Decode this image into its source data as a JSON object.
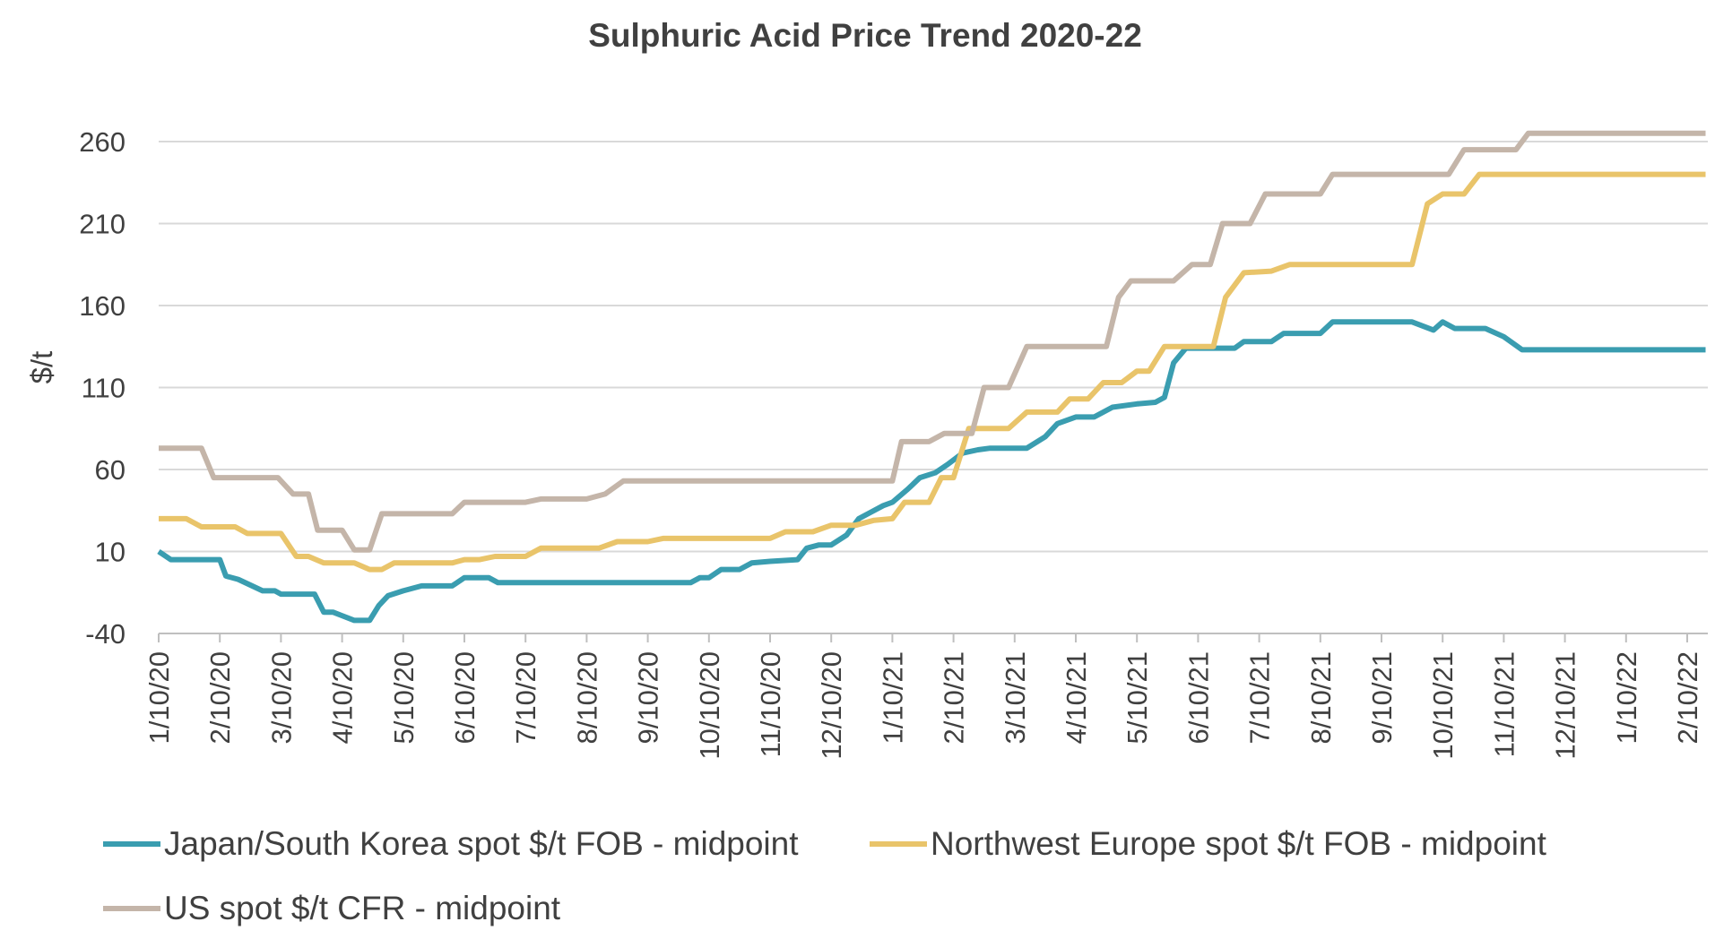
{
  "chart_data": {
    "type": "line",
    "title": "Sulphuric Acid Price Trend 2020-22",
    "ylabel": "$/t",
    "xlabel": "",
    "ylim": [
      -40,
      270
    ],
    "yticks": [
      -40,
      10,
      60,
      110,
      160,
      210,
      260
    ],
    "x_tick_labels": [
      "1/10/20",
      "2/10/20",
      "3/10/20",
      "4/10/20",
      "5/10/20",
      "6/10/20",
      "7/10/20",
      "8/10/20",
      "9/10/20",
      "10/10/20",
      "11/10/20",
      "12/10/20",
      "1/10/21",
      "2/10/21",
      "3/10/21",
      "4/10/21",
      "5/10/21",
      "6/10/21",
      "7/10/21",
      "8/10/21",
      "9/10/21",
      "10/10/21",
      "11/10/21",
      "12/10/21",
      "1/10/22",
      "2/10/22"
    ],
    "x_range_months": [
      0,
      25.3
    ],
    "grid": true,
    "legend_position": "bottom",
    "series": [
      {
        "name": "Japan/South Korea spot $/t FOB - midpoint",
        "color": "#3a9db0",
        "points": [
          [
            0,
            10
          ],
          [
            0.2,
            5
          ],
          [
            1,
            5
          ],
          [
            1.1,
            -5
          ],
          [
            1.3,
            -7
          ],
          [
            1.7,
            -14
          ],
          [
            1.9,
            -14
          ],
          [
            2.0,
            -16
          ],
          [
            2.55,
            -16
          ],
          [
            2.7,
            -27
          ],
          [
            2.85,
            -27
          ],
          [
            3.2,
            -32
          ],
          [
            3.45,
            -32
          ],
          [
            3.6,
            -23
          ],
          [
            3.75,
            -17
          ],
          [
            4.0,
            -14
          ],
          [
            4.3,
            -11
          ],
          [
            4.8,
            -11
          ],
          [
            5.0,
            -6
          ],
          [
            5.4,
            -6
          ],
          [
            5.55,
            -9
          ],
          [
            6.0,
            -9
          ],
          [
            8.7,
            -9
          ],
          [
            8.85,
            -6
          ],
          [
            9.0,
            -6
          ],
          [
            9.2,
            -1
          ],
          [
            9.5,
            -1
          ],
          [
            9.7,
            3
          ],
          [
            10.0,
            4
          ],
          [
            10.45,
            5
          ],
          [
            10.6,
            12
          ],
          [
            10.8,
            14
          ],
          [
            11.0,
            14
          ],
          [
            11.25,
            20
          ],
          [
            11.45,
            30
          ],
          [
            11.65,
            34
          ],
          [
            11.85,
            38
          ],
          [
            12.0,
            40
          ],
          [
            12.25,
            48
          ],
          [
            12.45,
            55
          ],
          [
            12.7,
            58
          ],
          [
            12.9,
            63
          ],
          [
            13.15,
            70
          ],
          [
            13.4,
            72
          ],
          [
            13.6,
            73
          ],
          [
            14.2,
            73
          ],
          [
            14.5,
            80
          ],
          [
            14.7,
            88
          ],
          [
            15.0,
            92
          ],
          [
            15.3,
            92
          ],
          [
            15.6,
            98
          ],
          [
            16.0,
            100
          ],
          [
            16.3,
            101
          ],
          [
            16.45,
            104
          ],
          [
            16.6,
            125
          ],
          [
            16.8,
            134
          ],
          [
            17.6,
            134
          ],
          [
            17.75,
            138
          ],
          [
            18.2,
            138
          ],
          [
            18.4,
            143
          ],
          [
            19.0,
            143
          ],
          [
            19.2,
            150
          ],
          [
            20.5,
            150
          ],
          [
            20.85,
            145
          ],
          [
            21.0,
            150
          ],
          [
            21.2,
            146
          ],
          [
            21.7,
            146
          ],
          [
            22.0,
            141
          ],
          [
            22.3,
            133
          ],
          [
            22.55,
            133
          ],
          [
            25.3,
            133
          ]
        ]
      },
      {
        "name": "Northwest Europe spot $/t FOB - midpoint",
        "color": "#e9c46a",
        "points": [
          [
            0,
            30
          ],
          [
            0.45,
            30
          ],
          [
            0.7,
            25
          ],
          [
            1.25,
            25
          ],
          [
            1.45,
            21
          ],
          [
            2.0,
            21
          ],
          [
            2.25,
            7
          ],
          [
            2.45,
            7
          ],
          [
            2.7,
            3
          ],
          [
            3.2,
            3
          ],
          [
            3.45,
            -1
          ],
          [
            3.65,
            -1
          ],
          [
            3.85,
            3
          ],
          [
            4.8,
            3
          ],
          [
            5.0,
            5
          ],
          [
            5.25,
            5
          ],
          [
            5.5,
            7
          ],
          [
            6.0,
            7
          ],
          [
            6.25,
            12
          ],
          [
            7.2,
            12
          ],
          [
            7.5,
            16
          ],
          [
            8.0,
            16
          ],
          [
            8.25,
            18
          ],
          [
            10.0,
            18
          ],
          [
            10.25,
            22
          ],
          [
            10.7,
            22
          ],
          [
            11.0,
            26
          ],
          [
            11.4,
            26
          ],
          [
            11.7,
            29
          ],
          [
            12.0,
            30
          ],
          [
            12.2,
            40
          ],
          [
            12.6,
            40
          ],
          [
            12.8,
            55
          ],
          [
            13.0,
            55
          ],
          [
            13.25,
            85
          ],
          [
            13.9,
            85
          ],
          [
            14.2,
            95
          ],
          [
            14.7,
            95
          ],
          [
            14.9,
            103
          ],
          [
            15.2,
            103
          ],
          [
            15.45,
            113
          ],
          [
            15.75,
            113
          ],
          [
            16.0,
            120
          ],
          [
            16.2,
            120
          ],
          [
            16.45,
            135
          ],
          [
            17.25,
            135
          ],
          [
            17.45,
            165
          ],
          [
            17.75,
            180
          ],
          [
            18.2,
            181
          ],
          [
            18.5,
            185
          ],
          [
            20.5,
            185
          ],
          [
            20.75,
            222
          ],
          [
            21.0,
            228
          ],
          [
            21.35,
            228
          ],
          [
            21.6,
            240
          ],
          [
            25.3,
            240
          ]
        ]
      },
      {
        "name": "US spot $/t CFR - midpoint",
        "color": "#c4b5a9",
        "points": [
          [
            0,
            73
          ],
          [
            0.7,
            73
          ],
          [
            0.9,
            55
          ],
          [
            1.95,
            55
          ],
          [
            2.2,
            45
          ],
          [
            2.45,
            45
          ],
          [
            2.6,
            23
          ],
          [
            3.0,
            23
          ],
          [
            3.2,
            11
          ],
          [
            3.45,
            11
          ],
          [
            3.65,
            33
          ],
          [
            4.8,
            33
          ],
          [
            5.0,
            40
          ],
          [
            6.0,
            40
          ],
          [
            6.25,
            42
          ],
          [
            7.0,
            42
          ],
          [
            7.3,
            45
          ],
          [
            7.6,
            53
          ],
          [
            12.0,
            53
          ],
          [
            12.15,
            77
          ],
          [
            12.6,
            77
          ],
          [
            12.85,
            82
          ],
          [
            13.3,
            82
          ],
          [
            13.5,
            110
          ],
          [
            13.9,
            110
          ],
          [
            14.2,
            135
          ],
          [
            15.5,
            135
          ],
          [
            15.7,
            165
          ],
          [
            15.9,
            175
          ],
          [
            16.6,
            175
          ],
          [
            16.9,
            185
          ],
          [
            17.2,
            185
          ],
          [
            17.4,
            210
          ],
          [
            17.85,
            210
          ],
          [
            18.1,
            228
          ],
          [
            19.0,
            228
          ],
          [
            19.2,
            240
          ],
          [
            21.1,
            240
          ],
          [
            21.35,
            255
          ],
          [
            22.2,
            255
          ],
          [
            22.4,
            265
          ],
          [
            25.3,
            265
          ]
        ]
      }
    ]
  }
}
